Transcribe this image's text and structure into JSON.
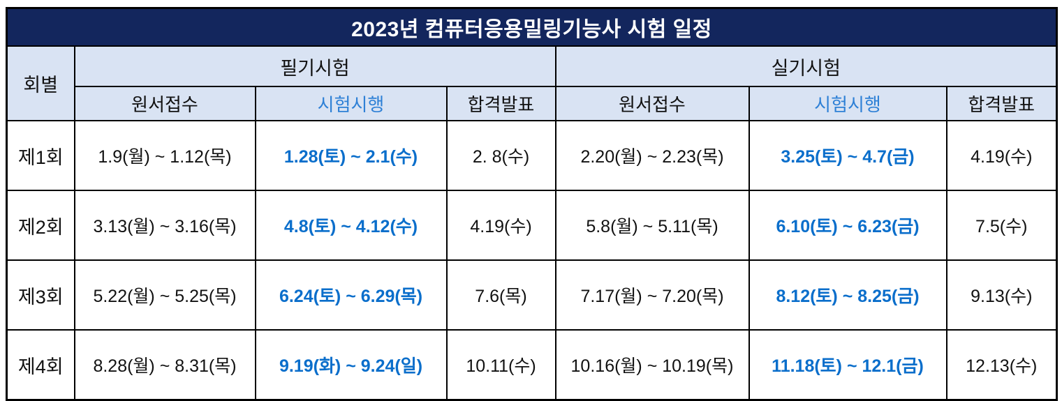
{
  "title": "2023년 컴퓨터응용밀링기능사 시험 일정",
  "colors": {
    "title_bar_bg": "#13265d",
    "title_text": "#ffffff",
    "header_bg": "#d9e3f3",
    "header_exam_blue": "#2e80d6",
    "exam_date_blue": "#0a6ecb",
    "round_cell_bg": "#f2f2f2",
    "border": "#000000"
  },
  "header": {
    "round_col": "회별",
    "written_group": "필기시험",
    "practical_group": "실기시험",
    "sub": {
      "application": "원서접수",
      "exam": "시험시행",
      "announcement": "합격발표"
    }
  },
  "rows": [
    {
      "round": "제1회",
      "written": {
        "application": "1.9(월) ~ 1.12(목)",
        "exam": "1.28(토) ~ 2.1(수)",
        "announcement": "2. 8(수)"
      },
      "practical": {
        "application": "2.20(월) ~ 2.23(목)",
        "exam": "3.25(토) ~ 4.7(금)",
        "announcement": "4.19(수)"
      }
    },
    {
      "round": "제2회",
      "written": {
        "application": "3.13(월) ~ 3.16(목)",
        "exam": "4.8(토) ~ 4.12(수)",
        "announcement": "4.19(수)"
      },
      "practical": {
        "application": "5.8(월) ~ 5.11(목)",
        "exam": "6.10(토) ~ 6.23(금)",
        "announcement": "7.5(수)"
      }
    },
    {
      "round": "제3회",
      "written": {
        "application": "5.22(월) ~ 5.25(목)",
        "exam": "6.24(토) ~ 6.29(목)",
        "announcement": "7.6(목)"
      },
      "practical": {
        "application": "7.17(월) ~ 7.20(목)",
        "exam": "8.12(토) ~ 8.25(금)",
        "announcement": "9.13(수)"
      }
    },
    {
      "round": "제4회",
      "written": {
        "application": "8.28(월) ~ 8.31(목)",
        "exam": "9.19(화) ~ 9.24(일)",
        "announcement": "10.11(수)"
      },
      "practical": {
        "application": "10.16(월) ~ 10.19(목)",
        "exam": "11.18(토) ~ 12.1(금)",
        "announcement": "12.13(수)"
      }
    }
  ]
}
